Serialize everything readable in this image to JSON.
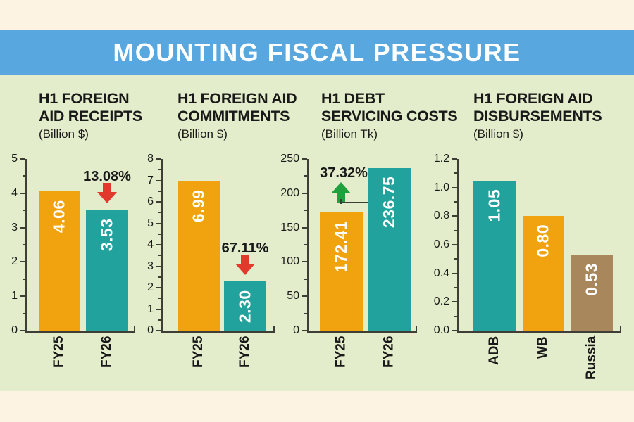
{
  "header": {
    "title": "MOUNTING FISCAL PRESSURE"
  },
  "colors": {
    "background": "#FDF3E3",
    "header_bg": "#58A7DE",
    "panel_bg": "#E4EDCB",
    "orange": "#F0A30E",
    "teal": "#21A29D",
    "brown": "#A9875D",
    "red": "#E13A2D",
    "green": "#1FA13E",
    "axis": "#3E3E36",
    "text": "#191919"
  },
  "chart_data": [
    {
      "type": "bar",
      "title_lines": [
        "H1 FOREIGN",
        "AID RECEIPTS"
      ],
      "subtitle": "(Billion $)",
      "categories": [
        "FY25",
        "FY26"
      ],
      "values": [
        4.06,
        3.53
      ],
      "value_labels": [
        "4.06",
        "3.53"
      ],
      "bar_colors": [
        "#F0A30E",
        "#21A29D"
      ],
      "ylim": [
        0,
        5
      ],
      "ytick_labels": [
        "5",
        "4",
        "3",
        "2",
        "1",
        "0"
      ],
      "ytick_values": [
        5,
        4,
        3,
        2,
        1,
        0
      ],
      "minor_ticks": true,
      "grid": false,
      "annotation": {
        "text": "13.08%",
        "change": "decrease",
        "arrow": "down",
        "color": "#E13A2D",
        "bar_index": 1
      }
    },
    {
      "type": "bar",
      "title_lines": [
        "H1 FOREIGN AID",
        "COMMITMENTS"
      ],
      "subtitle": "(Billion $)",
      "categories": [
        "FY25",
        "FY26"
      ],
      "values": [
        6.99,
        2.3
      ],
      "value_labels": [
        "6.99",
        "2.30"
      ],
      "bar_colors": [
        "#F0A30E",
        "#21A29D"
      ],
      "ylim": [
        0,
        8
      ],
      "ytick_labels": [
        "8",
        "7",
        "6",
        "5",
        "4",
        "3",
        "2",
        "1",
        "0"
      ],
      "ytick_values": [
        8,
        7,
        6,
        5,
        4,
        3,
        2,
        1,
        0
      ],
      "minor_ticks": true,
      "grid": false,
      "annotation": {
        "text": "67.11%",
        "change": "decrease",
        "arrow": "down",
        "color": "#E13A2D",
        "bar_index": 1
      }
    },
    {
      "type": "bar",
      "title_lines": [
        "H1 DEBT",
        "SERVICING COSTS"
      ],
      "subtitle": "(Billion Tk)",
      "categories": [
        "FY25",
        "FY26"
      ],
      "values": [
        172.41,
        236.75
      ],
      "value_labels": [
        "172.41",
        "236.75"
      ],
      "bar_colors": [
        "#F0A30E",
        "#21A29D"
      ],
      "ylim": [
        0,
        250
      ],
      "ytick_labels": [
        "250",
        "200",
        "150",
        "100",
        "50",
        "0"
      ],
      "ytick_values": [
        250,
        200,
        150,
        100,
        50,
        0
      ],
      "minor_ticks": true,
      "grid": false,
      "annotation": {
        "text": "37.32%",
        "change": "increase",
        "arrow": "up",
        "color": "#1FA13E",
        "bar_index": 1,
        "connector": true
      }
    },
    {
      "type": "bar",
      "title_lines": [
        "H1 FOREIGN AID",
        "DISBURSEMENTS"
      ],
      "subtitle": "(Billion $)",
      "categories": [
        "ADB",
        "WB",
        "Russia"
      ],
      "values": [
        1.05,
        0.8,
        0.53
      ],
      "value_labels": [
        "1.05",
        "0.80",
        "0.53"
      ],
      "bar_colors": [
        "#21A29D",
        "#F0A30E",
        "#A9875D"
      ],
      "ylim": [
        0,
        1.2
      ],
      "ytick_labels": [
        "1.2",
        "1.0",
        "0.8",
        "0.6",
        "0.4",
        "0.2",
        "0.0"
      ],
      "ytick_values": [
        1.2,
        1.0,
        0.8,
        0.6,
        0.4,
        0.2,
        0.0
      ],
      "minor_ticks": true,
      "grid": false,
      "annotation": null
    }
  ]
}
